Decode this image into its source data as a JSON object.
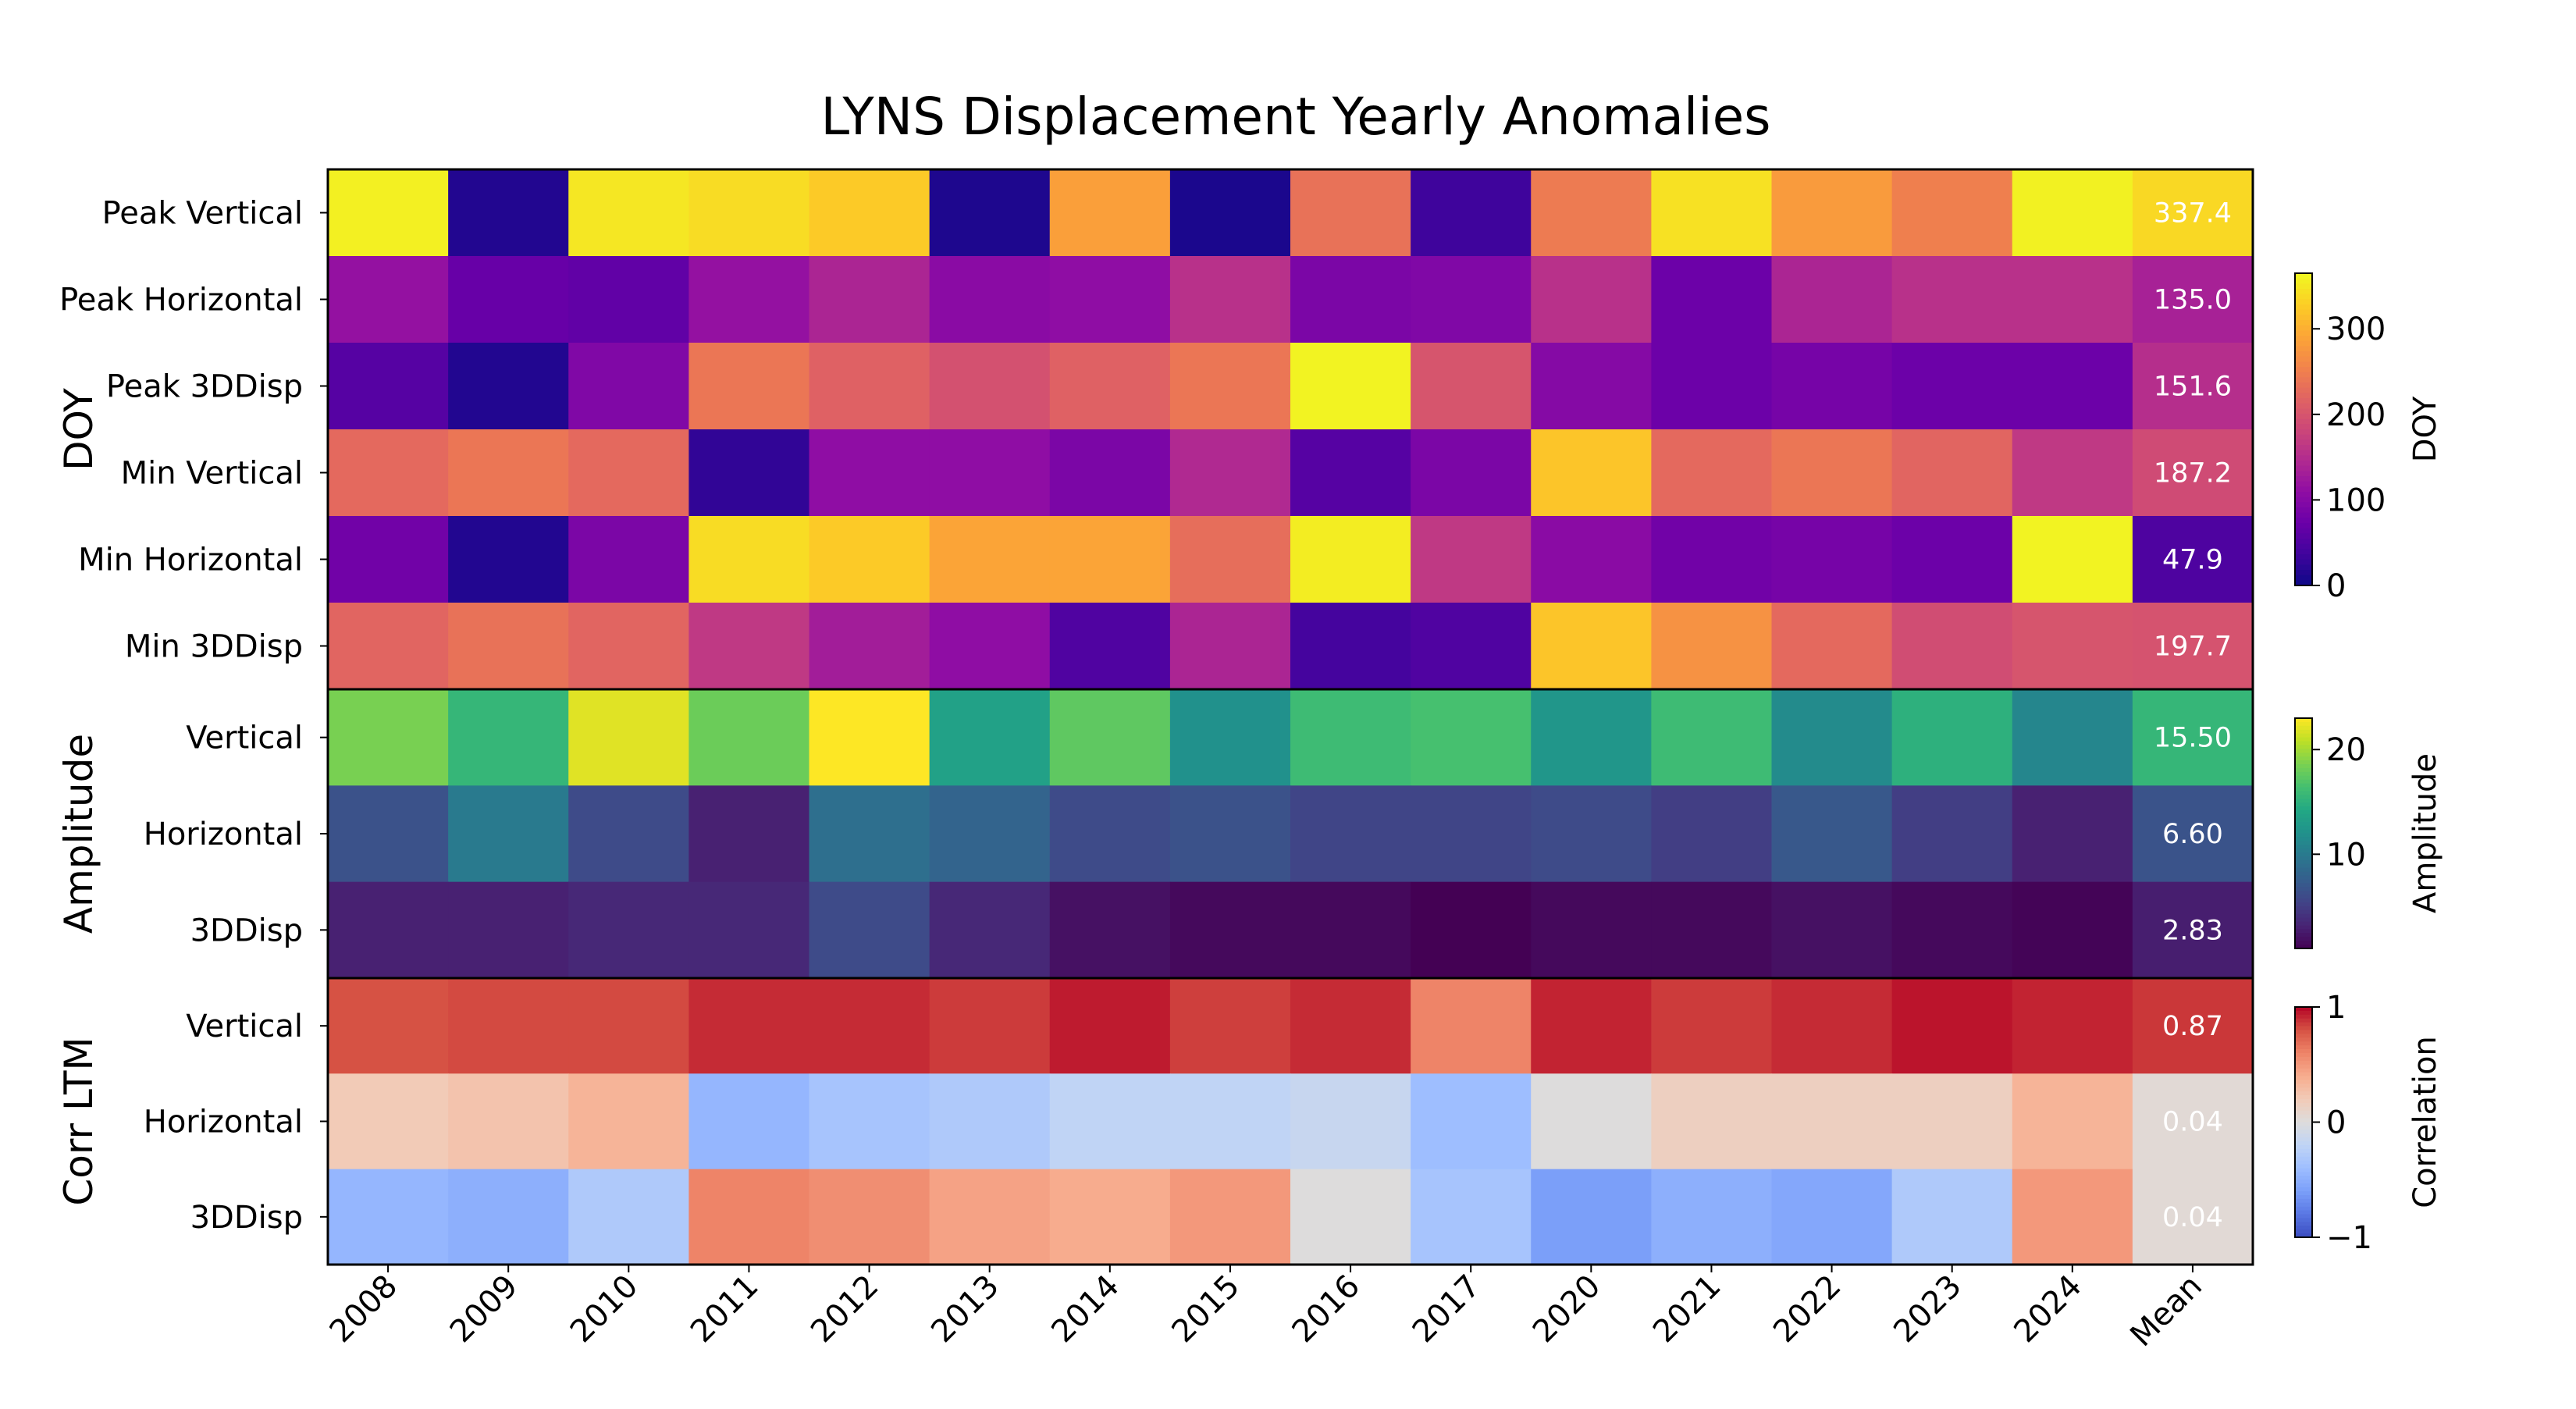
{
  "chart_data": {
    "type": "heatmap",
    "title": "LYNS Displacement Yearly Anomalies",
    "columns": [
      "2008",
      "2009",
      "2010",
      "2011",
      "2012",
      "2013",
      "2014",
      "2015",
      "2016",
      "2017",
      "2020",
      "2021",
      "2022",
      "2023",
      "2024",
      "Mean"
    ],
    "groups": [
      {
        "name": "DOY",
        "colormap": "plasma",
        "colorbar": {
          "label": "DOY",
          "range": [
            0,
            365
          ],
          "ticks": [
            "0",
            "100",
            "200",
            "300"
          ],
          "tick_values": [
            0,
            100,
            200,
            300
          ]
        },
        "rows": [
          {
            "label": "Peak Vertical",
            "values": [
              357,
              15,
              350,
              340,
              325,
              12,
              285,
              10,
              235,
              35,
              245,
              345,
              280,
              250,
              358,
              337.4
            ],
            "mean_label": "337.4"
          },
          {
            "label": "Peak Horizontal",
            "values": [
              115,
              70,
              65,
              115,
              140,
              105,
              110,
              155,
              90,
              95,
              155,
              75,
              140,
              155,
              155,
              135.0
            ],
            "mean_label": "135.0"
          },
          {
            "label": "Peak 3DDisp",
            "values": [
              55,
              15,
              95,
              240,
              215,
              195,
              215,
              240,
              360,
              200,
              100,
              75,
              85,
              75,
              75,
              151.6
            ],
            "mean_label": "151.6"
          },
          {
            "label": "Min Vertical",
            "values": [
              225,
              240,
              225,
              25,
              110,
              110,
              90,
              145,
              55,
              90,
              320,
              225,
              240,
              220,
              165,
              187.2
            ],
            "mean_label": "187.2"
          },
          {
            "label": "Min Horizontal",
            "values": [
              80,
              15,
              90,
              340,
              325,
              290,
              290,
              230,
              355,
              165,
              105,
              80,
              85,
              75,
              360,
              47.9
            ],
            "mean_label": "47.9"
          },
          {
            "label": "Min 3DDisp",
            "values": [
              220,
              235,
              220,
              165,
              130,
              110,
              50,
              140,
              40,
              50,
              320,
              270,
              225,
              190,
              200,
              197.7
            ],
            "mean_label": "197.7"
          }
        ]
      },
      {
        "name": "Amplitude",
        "colormap": "viridis",
        "colorbar": {
          "label": "Amplitude",
          "range": [
            1,
            23
          ],
          "ticks": [
            "10",
            "20"
          ],
          "tick_values": [
            10,
            20
          ]
        },
        "rows": [
          {
            "label": "Vertical",
            "values": [
              18.5,
              15.5,
              22.0,
              18.0,
              23.0,
              13.5,
              17.5,
              12.0,
              16.0,
              16.5,
              12.5,
              16.0,
              11.5,
              15.0,
              11.0,
              15.5
            ],
            "mean_label": "15.50"
          },
          {
            "label": "Horizontal",
            "values": [
              6.5,
              10.0,
              6.0,
              3.0,
              9.0,
              8.0,
              6.0,
              6.5,
              5.5,
              5.5,
              6.0,
              5.0,
              7.0,
              5.0,
              3.0,
              6.6
            ],
            "mean_label": "6.60"
          },
          {
            "label": "3DDisp",
            "values": [
              3.0,
              3.0,
              3.5,
              3.5,
              6.0,
              3.5,
              2.0,
              1.5,
              1.5,
              1.0,
              1.5,
              1.5,
              2.0,
              1.5,
              1.2,
              2.83
            ],
            "mean_label": "2.83"
          }
        ]
      },
      {
        "name": "Corr LTM",
        "colormap": "coolwarm",
        "colorbar": {
          "label": "Correlation",
          "range": [
            -1,
            1
          ],
          "ticks": [
            "−1",
            "0",
            "1"
          ],
          "tick_values": [
            -1,
            0,
            1
          ]
        },
        "rows": [
          {
            "label": "Vertical",
            "values": [
              0.8,
              0.82,
              0.82,
              0.9,
              0.9,
              0.86,
              0.94,
              0.85,
              0.9,
              0.6,
              0.92,
              0.86,
              0.9,
              0.96,
              0.92,
              0.87
            ],
            "mean_label": "0.87"
          },
          {
            "label": "Horizontal",
            "values": [
              0.2,
              0.25,
              0.35,
              -0.45,
              -0.35,
              -0.3,
              -0.2,
              -0.2,
              -0.15,
              -0.4,
              0.0,
              0.15,
              0.15,
              0.15,
              0.35,
              0.04
            ],
            "mean_label": "0.04"
          },
          {
            "label": "3DDisp",
            "values": [
              -0.45,
              -0.5,
              -0.3,
              0.6,
              0.55,
              0.45,
              0.4,
              0.5,
              0.0,
              -0.35,
              -0.6,
              -0.5,
              -0.55,
              -0.3,
              0.5,
              0.04
            ],
            "mean_label": "0.04"
          }
        ]
      }
    ]
  }
}
